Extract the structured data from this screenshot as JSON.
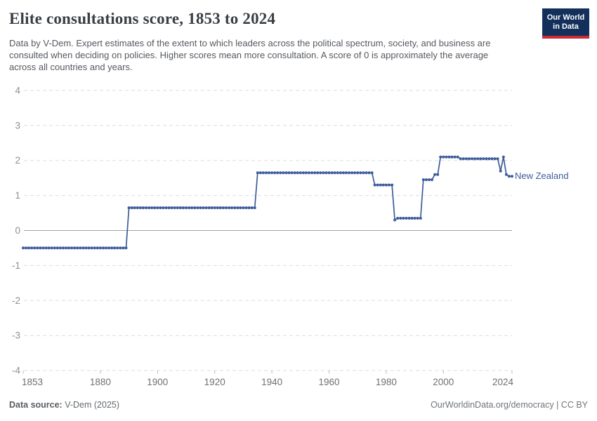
{
  "header": {
    "title": "Elite consultations score, 1853 to 2024",
    "subtitle": "Data by V-Dem. Expert estimates of the extent to which leaders across the political spectrum, society, and business are consulted when deciding on policies. Higher scores mean more consultation. A score of 0 is approximately the average across all countries and years.",
    "logo": {
      "line1": "Our World",
      "line2": "in Data",
      "bg_color": "#13305a",
      "accent_color": "#cc2b36"
    }
  },
  "chart_data": {
    "type": "line",
    "title": "Elite consultations score, 1853 to 2024",
    "series_label": "New Zealand",
    "line_color": "#3e5c9a",
    "xlabel": "",
    "ylabel": "",
    "xlim": [
      1853,
      2024
    ],
    "ylim": [
      -4,
      4
    ],
    "x_ticks": [
      1853,
      1880,
      1900,
      1920,
      1940,
      1960,
      1980,
      2000,
      2024
    ],
    "y_ticks": [
      4,
      3,
      2,
      1,
      0,
      -1,
      -2,
      -3,
      -4
    ],
    "grid": "horizontal-dashed",
    "zero_line": true,
    "marker": "dot-per-year",
    "steps": [
      {
        "from": 1853,
        "to": 1889,
        "value": -0.5
      },
      {
        "from": 1890,
        "to": 1934,
        "value": 0.65
      },
      {
        "from": 1935,
        "to": 1975,
        "value": 1.65
      },
      {
        "from": 1976,
        "to": 1982,
        "value": 1.3
      },
      {
        "from": 1983,
        "to": 1983,
        "value": 0.3
      },
      {
        "from": 1984,
        "to": 1992,
        "value": 0.35
      },
      {
        "from": 1993,
        "to": 1996,
        "value": 1.45
      },
      {
        "from": 1997,
        "to": 1998,
        "value": 1.6
      },
      {
        "from": 1999,
        "to": 2005,
        "value": 2.1
      },
      {
        "from": 2006,
        "to": 2019,
        "value": 2.05
      },
      {
        "from": 2020,
        "to": 2020,
        "value": 1.7
      },
      {
        "from": 2021,
        "to": 2021,
        "value": 2.1
      },
      {
        "from": 2022,
        "to": 2022,
        "value": 1.6
      },
      {
        "from": 2023,
        "to": 2024,
        "value": 1.55
      }
    ]
  },
  "footer": {
    "source_label": "Data source:",
    "source_value": " V-Dem (2025)",
    "credit": "OurWorldinData.org/democracy | CC BY"
  },
  "colors": {
    "grid": "#dedede",
    "zero_line": "#a1a1a1",
    "y_tick_text": "#8f8f8f",
    "x_tick_text": "#707070"
  }
}
